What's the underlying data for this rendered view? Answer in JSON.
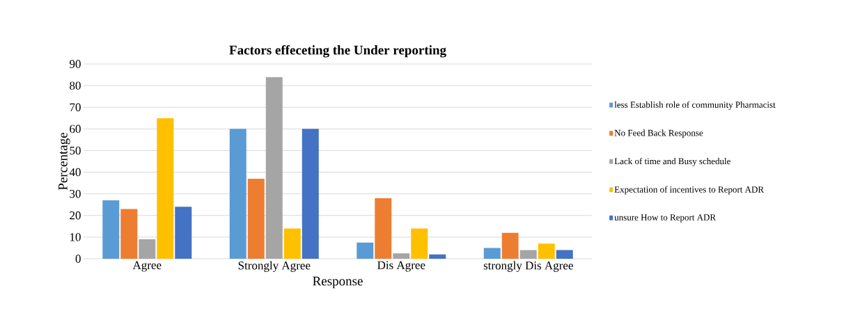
{
  "chart_data": {
    "type": "bar",
    "title": "Factors effeceting the Under reporting",
    "xlabel": "Response",
    "ylabel": "Percentage",
    "categories": [
      "Agree",
      "Strongly Agree",
      "Dis Agree",
      "strongly Dis Agree"
    ],
    "series": [
      {
        "name": "less Establish role of community Pharmacist",
        "color": "#5b9bd5",
        "values": [
          27,
          60,
          7.5,
          5
        ]
      },
      {
        "name": "No Feed Back Response",
        "color": "#ed7d31",
        "values": [
          23,
          37,
          28,
          12
        ]
      },
      {
        "name": "Lack of time and Busy schedule",
        "color": "#a5a5a5",
        "values": [
          9,
          84,
          2.5,
          4
        ]
      },
      {
        "name": "Expectation of incentives to Report ADR",
        "color": "#ffc000",
        "values": [
          65,
          14,
          14,
          7
        ]
      },
      {
        "name": "unsure How to Report ADR",
        "color": "#4472c4",
        "values": [
          24,
          60,
          2,
          4
        ]
      }
    ],
    "ylim": [
      0,
      90
    ],
    "yticks": [
      0,
      10,
      20,
      30,
      40,
      50,
      60,
      70,
      80,
      90
    ],
    "grid": "y",
    "legend": "right"
  }
}
